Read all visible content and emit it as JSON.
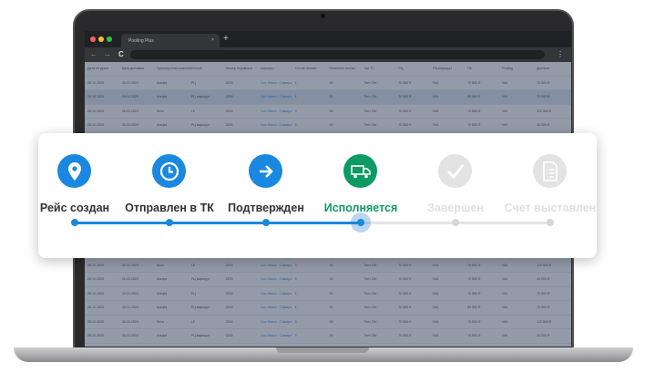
{
  "browser": {
    "tab_title": "Pooling Plus",
    "close": "×",
    "new_tab": "+",
    "back": "←",
    "forward": "→",
    "reload": "C",
    "menu": "⋮"
  },
  "table": {
    "headers": [
      "Дата отгрузки",
      "Дата доставки",
      "Транспортная компания",
      "Способ",
      "Номер перевозки",
      "Маршрут",
      "Кол-во паллет",
      "Плановое кол-во",
      "Тип ТС",
      "РЦ",
      "РЦ маршрут",
      "ПК",
      "Pooling",
      "Доплата"
    ],
    "rows": [
      [
        "26.10.2020",
        "26.10.2020",
        "Альфа",
        "РЦ",
        "2200",
        "Сыс.Новос - Самара",
        "4",
        "30",
        "Тент 20т",
        "70 500 ₽",
        "N/A",
        "70 500 ₽",
        "N/A",
        "70 500 ₽"
      ],
      [
        "26.10.2020",
        "26.10.2020",
        "Альфа",
        "РЦ маршрут",
        "2200",
        "Сыс.Новос - Самара",
        "4",
        "30",
        "Тент 20т",
        "70 500 ₽",
        "N/A",
        "65 500 ₽",
        "N/A",
        "70 500 ₽"
      ],
      [
        "26.10.2020",
        "26.10.2020",
        "Бета",
        "LE",
        "2200",
        "Сыс.Новос - Самара",
        "3",
        "28",
        "Тент 20т",
        "70 500 ₽",
        "N/A",
        "70 500 ₽",
        "N/A",
        "122 500 ₽"
      ],
      [
        "26.10.2020",
        "26.10.2020",
        "Альфа",
        "РЦ маршрут",
        "2200",
        "Сыс.Новос - Самара",
        "5",
        "26",
        "Тент 20т",
        "70 500 ₽",
        "N/A",
        "70 500 ₽",
        "N/A",
        "46 200 ₽"
      ]
    ]
  },
  "status_tracker": {
    "steps": [
      {
        "label": "Рейс создан",
        "icon": "map-pin-icon",
        "state": "done"
      },
      {
        "label": "Отправлен в ТК",
        "icon": "clock-icon",
        "state": "done"
      },
      {
        "label": "Подтвержден",
        "icon": "arrow-right-icon",
        "state": "done"
      },
      {
        "label": "Исполняется",
        "icon": "truck-icon",
        "state": "current"
      },
      {
        "label": "Завершен",
        "icon": "check-icon",
        "state": "pending"
      },
      {
        "label": "Счет выставлен",
        "icon": "invoice-icon",
        "state": "pending"
      }
    ],
    "colors": {
      "done": "#1a88e0",
      "current": "#0e9a63",
      "pending": "#e3e3e3",
      "pending_text": "#e0e0e0"
    }
  }
}
